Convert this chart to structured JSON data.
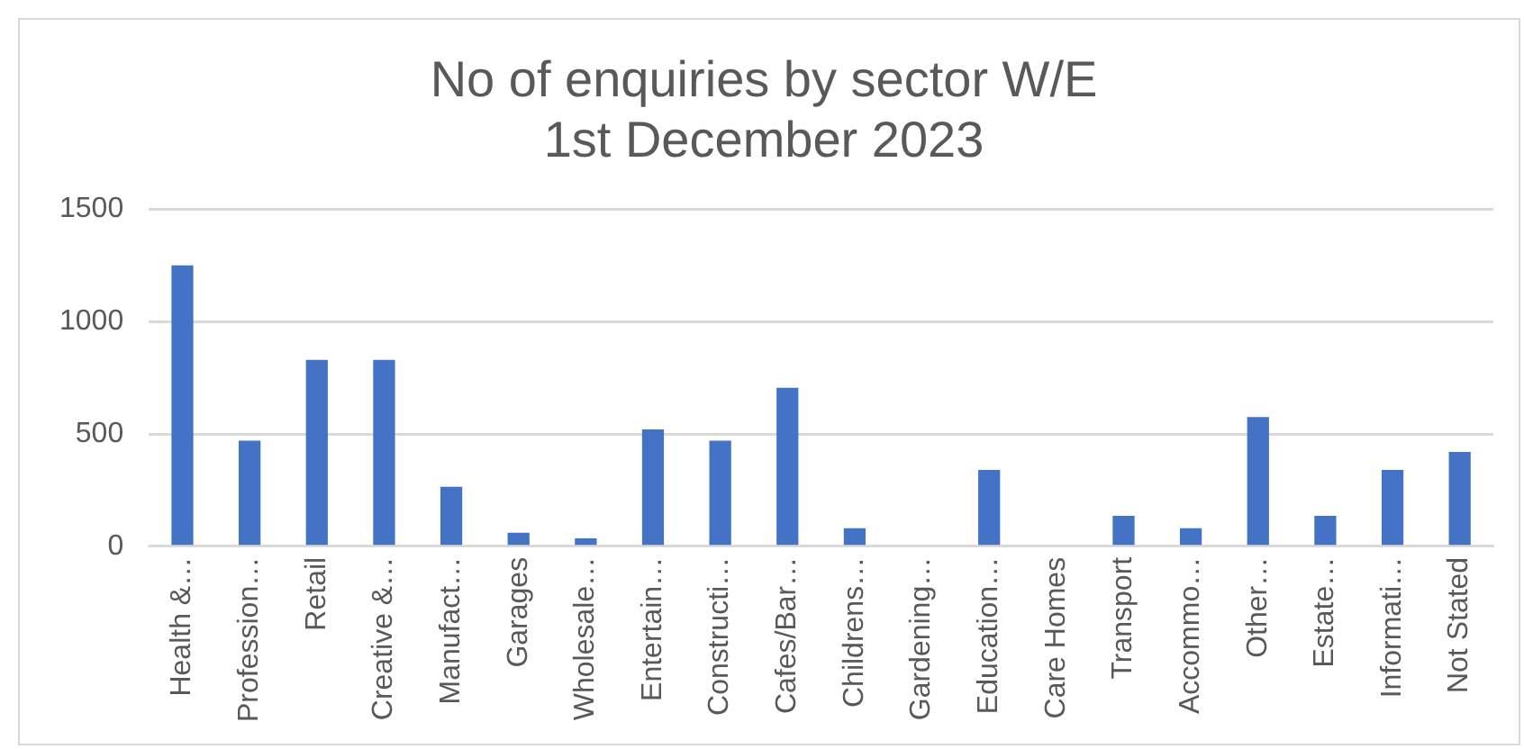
{
  "chart_data": {
    "type": "bar",
    "title": "No of enquiries by sector W/E 1st December 2023",
    "categories": [
      "Health &…",
      "Profession…",
      "Retail",
      "Creative &…",
      "Manufact…",
      "Garages",
      "Wholesale…",
      "Entertain…",
      "Constructi…",
      "Cafes/Bar…",
      "Childrens…",
      "Gardening…",
      "Education…",
      "Care Homes",
      "Transport",
      "Accommo…",
      "Other…",
      "Estate…",
      "Informati…",
      "Not Stated"
    ],
    "values": [
      1250,
      470,
      830,
      830,
      265,
      60,
      35,
      520,
      470,
      705,
      80,
      0,
      340,
      0,
      135,
      80,
      575,
      135,
      340,
      420
    ],
    "color": "#4472c4",
    "ylim": [
      0,
      1500
    ],
    "yticks": [
      0,
      500,
      1000,
      1500
    ],
    "grid": "y",
    "legend": false
  }
}
